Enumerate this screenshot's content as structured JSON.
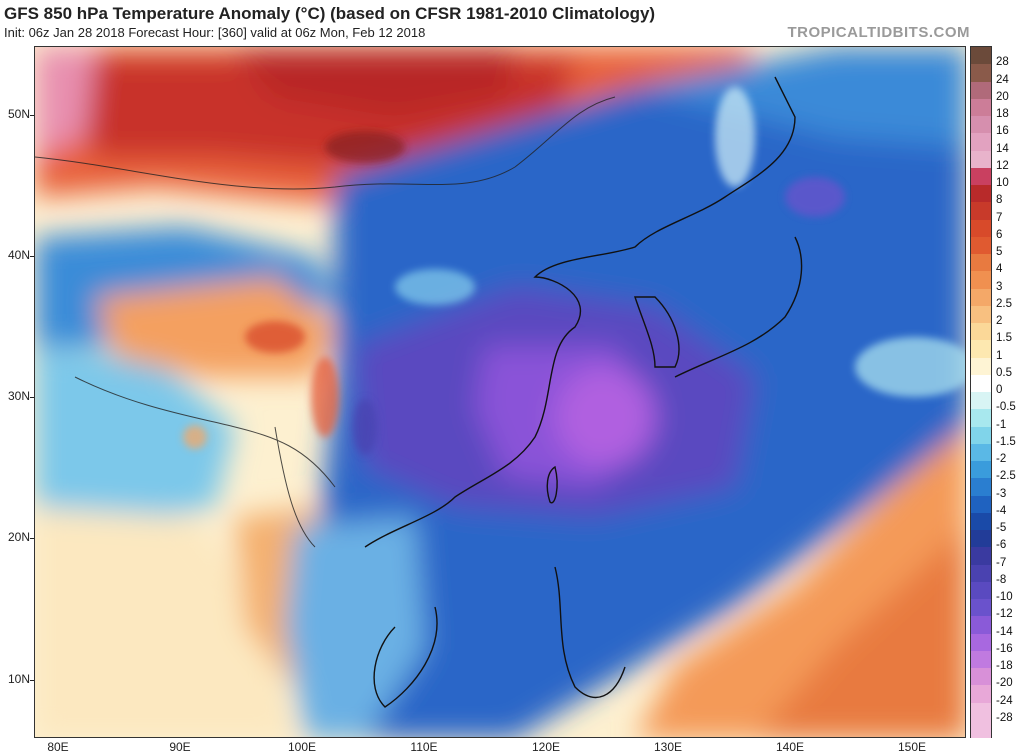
{
  "header": {
    "title": "GFS 850 hPa Temperature Anomaly (°C) (based on CFSR 1981-2010 Climatology)",
    "subtitle": "Init: 06z Jan 28 2018   Forecast Hour: [360]   valid at 06z Mon, Feb 12 2018",
    "brand": "TROPICALTIDBITS.COM"
  },
  "axes": {
    "lat_labels": [
      "50N",
      "40N",
      "30N",
      "20N",
      "10N"
    ],
    "lon_labels": [
      "80E",
      "90E",
      "100E",
      "110E",
      "120E",
      "130E",
      "140E",
      "150E"
    ]
  },
  "colorbar": {
    "labels": [
      "28",
      "24",
      "20",
      "18",
      "16",
      "14",
      "12",
      "10",
      "8",
      "7",
      "6",
      "5",
      "4",
      "3",
      "2.5",
      "2",
      "1.5",
      "1",
      "0.5",
      "0",
      "-0.5",
      "-1",
      "-1.5",
      "-2",
      "-2.5",
      "-3",
      "-4",
      "-5",
      "-6",
      "-7",
      "-8",
      "-10",
      "-12",
      "-14",
      "-16",
      "-18",
      "-20",
      "-24",
      "-28"
    ],
    "colors": [
      "#6b4a3a",
      "#8a5a4a",
      "#b06a7a",
      "#cc7d98",
      "#d68fae",
      "#e2a2c0",
      "#e8b3cb",
      "#c94060",
      "#b82a2a",
      "#c83a2a",
      "#d84a2a",
      "#e05a30",
      "#e87a40",
      "#f09050",
      "#f4a868",
      "#f8c080",
      "#fbd898",
      "#fde8b0",
      "#fef4d4",
      "#ffffff",
      "#d8f4f4",
      "#a8e8ee",
      "#80d4ea",
      "#5ab8e6",
      "#3a9cdc",
      "#2a7ed0",
      "#1f62c0",
      "#1a4aa8",
      "#223c98",
      "#3a3aa0",
      "#4a42b0",
      "#5a4ac0",
      "#6a52cc",
      "#8a5ad8",
      "#a868e0",
      "#c07ae0",
      "#d890d8",
      "#e8a8d8",
      "#f0c0e0"
    ]
  },
  "map_colors": {
    "ocean_cold": "#2e66c8",
    "cold_core": "#7a48d0",
    "warm_pacific": "#f08848",
    "warm_north": "#c8302a",
    "neutral": "#ffffff"
  }
}
